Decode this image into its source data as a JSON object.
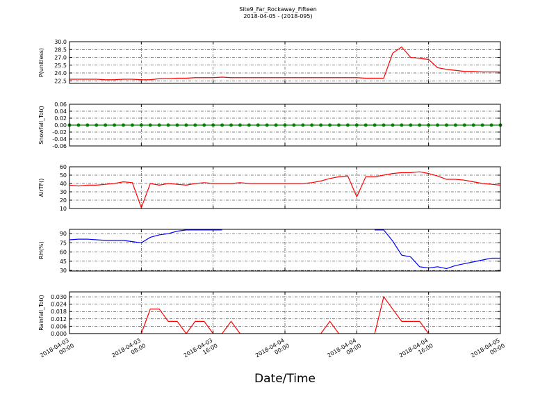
{
  "title": "Site9_Far_Rockaway_Fifteen",
  "subtitle": "2018-04-05 - (2018-095)",
  "x_label": "Date/Time",
  "chart_data": [
    {
      "type": "line",
      "y_label": "P(unitless)",
      "ylim": [
        22,
        30
      ],
      "yticks": [
        22.5,
        {
          "value": 24,
          "label": "24.0"
        },
        25.5,
        {
          "value": 27,
          "label": "27.0"
        },
        28.5,
        {
          "value": 30,
          "label": "30.0"
        }
      ],
      "grid": true,
      "x": [
        "2018-04-03 00:00",
        "2018-04-03 01:00",
        "2018-04-03 02:00",
        "2018-04-03 03:00",
        "2018-04-03 04:00",
        "2018-04-03 05:00",
        "2018-04-03 06:00",
        "2018-04-03 07:00",
        "2018-04-03 08:00",
        "2018-04-03 09:00",
        "2018-04-03 10:00",
        "2018-04-03 11:00",
        "2018-04-03 12:00",
        "2018-04-03 13:00",
        "2018-04-03 14:00",
        "2018-04-03 15:00",
        "2018-04-03 16:00",
        "2018-04-03 17:00",
        "2018-04-03 18:00",
        "2018-04-03 19:00",
        "2018-04-03 20:00",
        "2018-04-03 21:00",
        "2018-04-03 22:00",
        "2018-04-03 23:00",
        "2018-04-04 00:00",
        "2018-04-04 01:00",
        "2018-04-04 02:00",
        "2018-04-04 03:00",
        "2018-04-04 04:00",
        "2018-04-04 05:00",
        "2018-04-04 06:00",
        "2018-04-04 07:00",
        "2018-04-04 08:00",
        "2018-04-04 09:00",
        "2018-04-04 10:00",
        "2018-04-04 11:00",
        "2018-04-04 12:00",
        "2018-04-04 13:00",
        "2018-04-04 14:00",
        "2018-04-04 15:00",
        "2018-04-04 16:00",
        "2018-04-04 17:00",
        "2018-04-04 18:00",
        "2018-04-04 19:00",
        "2018-04-04 20:00",
        "2018-04-04 21:00",
        "2018-04-04 22:00",
        "2018-04-04 23:00",
        "2018-04-05 00:00"
      ],
      "series": [
        {
          "color": "#ff0000",
          "values": [
            22.8,
            22.8,
            22.8,
            22.8,
            22.7,
            22.7,
            22.8,
            22.8,
            22.7,
            22.7,
            22.9,
            22.9,
            23.0,
            23.0,
            23.1,
            23.1,
            23.1,
            23.2,
            23.1,
            23.1,
            23.1,
            23.1,
            23.1,
            23.1,
            23.1,
            23.1,
            23.1,
            23.1,
            23.1,
            23.1,
            23.1,
            23.1,
            23.1,
            23.0,
            23.0,
            23.0,
            27.8,
            29.0,
            27.0,
            26.8,
            26.6,
            25.0,
            24.7,
            24.5,
            24.3,
            24.3,
            24.2,
            24.2,
            24.2
          ]
        }
      ]
    },
    {
      "type": "line",
      "y_label": "Snowfall_Tot()",
      "ylim": [
        -0.06,
        0.06
      ],
      "yticks": [
        {
          "value": -0.06,
          "label": "-0.06"
        },
        {
          "value": -0.04,
          "label": "-0.04"
        },
        {
          "value": -0.02,
          "label": "-0.02"
        },
        {
          "value": 0,
          "label": "0.00"
        },
        {
          "value": 0.02,
          "label": "0.02"
        },
        {
          "value": 0.04,
          "label": "0.04"
        },
        {
          "value": 0.06,
          "label": "0.06"
        }
      ],
      "grid": true,
      "marker": true,
      "x": [
        "2018-04-03 00:00",
        "2018-04-03 01:00",
        "2018-04-03 02:00",
        "2018-04-03 03:00",
        "2018-04-03 04:00",
        "2018-04-03 05:00",
        "2018-04-03 06:00",
        "2018-04-03 07:00",
        "2018-04-03 08:00",
        "2018-04-03 09:00",
        "2018-04-03 10:00",
        "2018-04-03 11:00",
        "2018-04-03 12:00",
        "2018-04-03 13:00",
        "2018-04-03 14:00",
        "2018-04-03 15:00",
        "2018-04-03 16:00",
        "2018-04-03 17:00",
        "2018-04-03 18:00",
        "2018-04-03 19:00",
        "2018-04-03 20:00",
        "2018-04-03 21:00",
        "2018-04-03 22:00",
        "2018-04-03 23:00",
        "2018-04-04 00:00",
        "2018-04-04 01:00",
        "2018-04-04 02:00",
        "2018-04-04 03:00",
        "2018-04-04 04:00",
        "2018-04-04 05:00",
        "2018-04-04 06:00",
        "2018-04-04 07:00",
        "2018-04-04 08:00",
        "2018-04-04 09:00",
        "2018-04-04 10:00",
        "2018-04-04 11:00",
        "2018-04-04 12:00",
        "2018-04-04 13:00",
        "2018-04-04 14:00",
        "2018-04-04 15:00",
        "2018-04-04 16:00",
        "2018-04-04 17:00",
        "2018-04-04 18:00",
        "2018-04-04 19:00",
        "2018-04-04 20:00",
        "2018-04-04 21:00",
        "2018-04-04 22:00",
        "2018-04-04 23:00",
        "2018-04-05 00:00"
      ],
      "series": [
        {
          "color": "#008000",
          "values": [
            0,
            0,
            0,
            0,
            0,
            0,
            0,
            0,
            0,
            0,
            0,
            0,
            0,
            0,
            0,
            0,
            0,
            0,
            0,
            0,
            0,
            0,
            0,
            0,
            0,
            0,
            0,
            0,
            0,
            0,
            0,
            0,
            0,
            0,
            0,
            0,
            0,
            0,
            0,
            0,
            0,
            0,
            0,
            0,
            0,
            0,
            0,
            0,
            0
          ]
        }
      ]
    },
    {
      "type": "line",
      "y_label": "AirTF()",
      "ylim": [
        10,
        60
      ],
      "yticks": [
        10,
        20,
        30,
        40,
        50,
        60
      ],
      "grid": true,
      "x": [
        "2018-04-03 00:00",
        "2018-04-03 01:00",
        "2018-04-03 02:00",
        "2018-04-03 03:00",
        "2018-04-03 04:00",
        "2018-04-03 05:00",
        "2018-04-03 06:00",
        "2018-04-03 07:00",
        "2018-04-03 08:00",
        "2018-04-03 09:00",
        "2018-04-03 10:00",
        "2018-04-03 11:00",
        "2018-04-03 12:00",
        "2018-04-03 13:00",
        "2018-04-03 14:00",
        "2018-04-03 15:00",
        "2018-04-03 16:00",
        "2018-04-03 17:00",
        "2018-04-03 18:00",
        "2018-04-03 19:00",
        "2018-04-03 20:00",
        "2018-04-03 21:00",
        "2018-04-03 22:00",
        "2018-04-03 23:00",
        "2018-04-04 00:00",
        "2018-04-04 01:00",
        "2018-04-04 02:00",
        "2018-04-04 03:00",
        "2018-04-04 04:00",
        "2018-04-04 05:00",
        "2018-04-04 06:00",
        "2018-04-04 07:00",
        "2018-04-04 08:00",
        "2018-04-04 09:00",
        "2018-04-04 10:00",
        "2018-04-04 11:00",
        "2018-04-04 12:00",
        "2018-04-04 13:00",
        "2018-04-04 14:00",
        "2018-04-04 15:00",
        "2018-04-04 16:00",
        "2018-04-04 17:00",
        "2018-04-04 18:00",
        "2018-04-04 19:00",
        "2018-04-04 20:00",
        "2018-04-04 21:00",
        "2018-04-04 22:00",
        "2018-04-04 23:00",
        "2018-04-05 00:00"
      ],
      "series": [
        {
          "color": "#ff0000",
          "values": [
            38,
            37,
            38,
            38,
            39,
            40,
            42,
            41,
            11,
            40,
            38,
            40,
            39,
            38,
            40,
            41,
            40,
            40,
            40,
            41,
            40,
            40,
            40,
            40,
            40,
            40,
            40,
            41,
            43,
            46,
            48,
            49,
            24,
            48,
            48,
            50,
            52,
            53,
            53,
            54,
            52,
            49,
            45,
            45,
            44,
            42,
            40,
            39,
            38
          ]
        }
      ]
    },
    {
      "type": "line",
      "y_label": "RH(%)",
      "ylim": [
        29,
        97
      ],
      "yticks": [
        30,
        45,
        60,
        75,
        90
      ],
      "grid": true,
      "x": [
        "2018-04-03 00:00",
        "2018-04-03 01:00",
        "2018-04-03 02:00",
        "2018-04-03 03:00",
        "2018-04-03 04:00",
        "2018-04-03 05:00",
        "2018-04-03 06:00",
        "2018-04-03 07:00",
        "2018-04-03 08:00",
        "2018-04-03 09:00",
        "2018-04-03 10:00",
        "2018-04-03 11:00",
        "2018-04-03 12:00",
        "2018-04-03 13:00",
        "2018-04-03 14:00",
        "2018-04-03 15:00",
        "2018-04-03 16:00",
        "2018-04-03 17:00",
        "2018-04-03 18:00",
        "2018-04-03 19:00",
        "2018-04-03 20:00",
        "2018-04-03 21:00",
        "2018-04-03 22:00",
        "2018-04-03 23:00",
        "2018-04-04 00:00",
        "2018-04-04 01:00",
        "2018-04-04 02:00",
        "2018-04-04 03:00",
        "2018-04-04 04:00",
        "2018-04-04 05:00",
        "2018-04-04 06:00",
        "2018-04-04 07:00",
        "2018-04-04 08:00",
        "2018-04-04 09:00",
        "2018-04-04 10:00",
        "2018-04-04 11:00",
        "2018-04-04 12:00",
        "2018-04-04 13:00",
        "2018-04-04 14:00",
        "2018-04-04 15:00",
        "2018-04-04 16:00",
        "2018-04-04 17:00",
        "2018-04-04 18:00",
        "2018-04-04 19:00",
        "2018-04-04 20:00",
        "2018-04-04 21:00",
        "2018-04-04 22:00",
        "2018-04-04 23:00",
        "2018-04-05 00:00"
      ],
      "series": [
        {
          "color": "#0000ff",
          "values": [
            80,
            81,
            81,
            80,
            79,
            79,
            79,
            77,
            75,
            84,
            88,
            90,
            94,
            96,
            96,
            96,
            96,
            96,
            null,
            null,
            null,
            null,
            null,
            null,
            null,
            null,
            null,
            null,
            null,
            null,
            null,
            null,
            null,
            null,
            96,
            96,
            78,
            55,
            52,
            36,
            34,
            36,
            33,
            38,
            41,
            44,
            47,
            50,
            50
          ]
        }
      ]
    },
    {
      "type": "line",
      "y_label": "Rainfall_Tot()",
      "ylim": [
        0,
        0.034
      ],
      "yticks": [
        {
          "value": 0,
          "label": "0.000"
        },
        {
          "value": 0.006,
          "label": "0.006"
        },
        {
          "value": 0.012,
          "label": "0.012"
        },
        {
          "value": 0.018,
          "label": "0.018"
        },
        {
          "value": 0.024,
          "label": "0.024"
        },
        {
          "value": 0.03,
          "label": "0.030"
        }
      ],
      "grid": true,
      "xlim": [
        "2018-04-03 00:00",
        "2018-04-05 00:00"
      ],
      "xticks": [
        "2018-04-03 00:00",
        "2018-04-03 08:00",
        "2018-04-03 16:00",
        "2018-04-04 00:00",
        "2018-04-04 08:00",
        "2018-04-04 16:00",
        "2018-04-05 00:00"
      ],
      "x": [
        "2018-04-03 00:00",
        "2018-04-03 01:00",
        "2018-04-03 02:00",
        "2018-04-03 03:00",
        "2018-04-03 04:00",
        "2018-04-03 05:00",
        "2018-04-03 06:00",
        "2018-04-03 07:00",
        "2018-04-03 08:00",
        "2018-04-03 09:00",
        "2018-04-03 10:00",
        "2018-04-03 11:00",
        "2018-04-03 12:00",
        "2018-04-03 13:00",
        "2018-04-03 14:00",
        "2018-04-03 15:00",
        "2018-04-03 16:00",
        "2018-04-03 17:00",
        "2018-04-03 18:00",
        "2018-04-03 19:00",
        "2018-04-03 20:00",
        "2018-04-03 21:00",
        "2018-04-03 22:00",
        "2018-04-03 23:00",
        "2018-04-04 00:00",
        "2018-04-04 01:00",
        "2018-04-04 02:00",
        "2018-04-04 03:00",
        "2018-04-04 04:00",
        "2018-04-04 05:00",
        "2018-04-04 06:00",
        "2018-04-04 07:00",
        "2018-04-04 08:00",
        "2018-04-04 09:00",
        "2018-04-04 10:00",
        "2018-04-04 11:00",
        "2018-04-04 12:00",
        "2018-04-04 13:00",
        "2018-04-04 14:00",
        "2018-04-04 15:00",
        "2018-04-04 16:00",
        "2018-04-04 17:00",
        "2018-04-04 18:00",
        "2018-04-04 19:00",
        "2018-04-04 20:00",
        "2018-04-04 21:00",
        "2018-04-04 22:00",
        "2018-04-04 23:00",
        "2018-04-05 00:00"
      ],
      "series": [
        {
          "color": "#ff0000",
          "values": [
            0,
            0,
            0,
            0,
            0,
            0,
            0,
            0,
            0,
            0.02,
            0.02,
            0.01,
            0.01,
            0,
            0.01,
            0.01,
            0,
            0,
            0.01,
            0,
            0,
            0,
            0,
            0,
            0,
            0,
            0,
            0,
            0,
            0.01,
            0,
            0,
            0,
            0,
            0,
            0.03,
            0.02,
            0.01,
            0.01,
            0.01,
            0,
            0,
            0,
            0,
            0,
            0,
            0,
            0,
            0
          ]
        }
      ]
    }
  ]
}
